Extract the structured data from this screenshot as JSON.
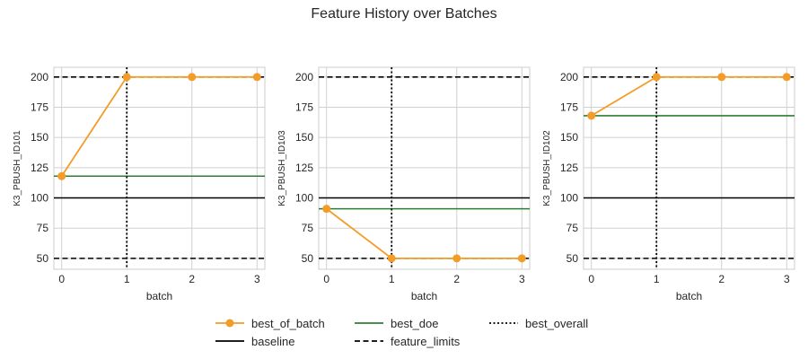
{
  "figure": {
    "title": "Feature History over Batches"
  },
  "colors": {
    "best_of_batch": "#f39c28",
    "best_doe": "#2e7d32",
    "baseline": "#000000",
    "feature_limits": "#000000",
    "best_overall": "#000000",
    "grid": "#d0d0d0",
    "frame": "#cccccc"
  },
  "chart_data": [
    {
      "type": "line",
      "xlabel": "batch",
      "ylabel": "K3_PBUSH_ID101",
      "x": [
        0,
        1,
        2,
        3
      ],
      "xticks": [
        0,
        1,
        2,
        3
      ],
      "yticks": [
        50,
        75,
        100,
        125,
        150,
        175,
        200
      ],
      "xlim": [
        -0.12,
        3.12
      ],
      "ylim": [
        41,
        208
      ],
      "series": [
        {
          "name": "best_of_batch",
          "values": [
            118,
            200,
            200,
            200
          ]
        }
      ],
      "best_doe": 118,
      "baseline": 100,
      "feature_limits": [
        50,
        200
      ],
      "best_overall": 1
    },
    {
      "type": "line",
      "xlabel": "batch",
      "ylabel": "K3_PBUSH_ID103",
      "x": [
        0,
        1,
        2,
        3
      ],
      "xticks": [
        0,
        1,
        2,
        3
      ],
      "yticks": [
        50,
        75,
        100,
        125,
        150,
        175,
        200
      ],
      "xlim": [
        -0.12,
        3.12
      ],
      "ylim": [
        41,
        208
      ],
      "series": [
        {
          "name": "best_of_batch",
          "values": [
            91,
            50,
            50,
            50
          ]
        }
      ],
      "best_doe": 91,
      "baseline": 100,
      "feature_limits": [
        50,
        200
      ],
      "best_overall": 1
    },
    {
      "type": "line",
      "xlabel": "batch",
      "ylabel": "K3_PBUSH_ID102",
      "x": [
        0,
        1,
        2,
        3
      ],
      "xticks": [
        0,
        1,
        2,
        3
      ],
      "yticks": [
        50,
        75,
        100,
        125,
        150,
        175,
        200
      ],
      "xlim": [
        -0.12,
        3.12
      ],
      "ylim": [
        41,
        208
      ],
      "series": [
        {
          "name": "best_of_batch",
          "values": [
            168,
            200,
            200,
            200
          ]
        }
      ],
      "best_doe": 168,
      "baseline": 100,
      "feature_limits": [
        50,
        200
      ],
      "best_overall": 1
    }
  ],
  "legend": {
    "placement": "bottom-center",
    "items": [
      {
        "key": "best_of_batch",
        "label": "best_of_batch",
        "style": "line-marker"
      },
      {
        "key": "baseline",
        "label": "baseline",
        "style": "solid"
      },
      {
        "key": "best_doe",
        "label": "best_doe",
        "style": "solid"
      },
      {
        "key": "feature_limits",
        "label": "feature_limits",
        "style": "dashed"
      },
      {
        "key": "best_overall",
        "label": "best_overall",
        "style": "dotted"
      }
    ]
  }
}
